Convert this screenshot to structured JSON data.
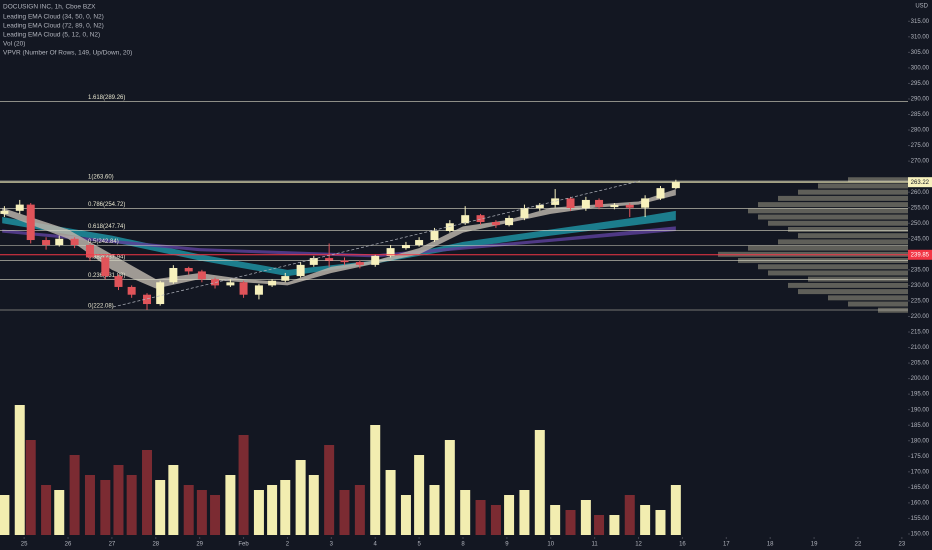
{
  "chart_data": {
    "type": "candlestick",
    "title": "DOCUSIGN INC, 1h, Cboe BZX",
    "indicators": [
      "Leading EMA Cloud (34, 50, 0, N2)",
      "Leading EMA Cloud (72, 89, 0, N2)",
      "Leading EMA Cloud (5, 12, 0, N2)",
      "Vol (20)",
      "VPVR (Number Of Rows, 149, Up/Down, 20)"
    ],
    "currency": "USD",
    "up_color": "#f7f1bd",
    "down_color": "#e0545a",
    "volume_up_color": "#f2edb0",
    "volume_down_color": "#7b2b32",
    "x": [
      -0.45,
      -0.1,
      0.15,
      0.5,
      0.8,
      1.15,
      1.5,
      1.85,
      2.15,
      2.45,
      2.8,
      3.1,
      3.4,
      3.75,
      4.05,
      4.35,
      4.7,
      5.0,
      5.35,
      5.65,
      5.95,
      6.3,
      6.6,
      6.95,
      7.3,
      7.65,
      8.0,
      8.35,
      8.7,
      9.0,
      9.35,
      9.7,
      10.05,
      10.4,
      10.75,
      11.05,
      11.4,
      11.75,
      12.1,
      12.45,
      12.8,
      13.1,
      13.45,
      13.8,
      14.15,
      14.5,
      14.85
    ],
    "open": [
      253,
      254,
      256,
      244.6,
      243,
      245,
      243,
      239,
      233,
      229.5,
      227,
      224,
      231,
      235.6,
      234.5,
      232,
      230,
      231,
      227,
      230,
      231.5,
      233,
      236.6,
      238.8,
      238,
      237.5,
      236.6,
      239.5,
      242,
      243,
      244.6,
      247.5,
      250,
      252.6,
      250.4,
      249.4,
      251.7,
      254.9,
      255.9,
      258,
      254.9,
      257.5,
      255.2,
      255.9,
      255,
      258,
      261.3
    ],
    "high": [
      255.5,
      257.5,
      256.5,
      245.5,
      246,
      245.5,
      243.5,
      239.5,
      233.5,
      230,
      227.5,
      231.5,
      236.5,
      236,
      235,
      232.5,
      232,
      231.5,
      230.5,
      232,
      234,
      237.5,
      239.5,
      243.5,
      239,
      238,
      240,
      243,
      244,
      245.5,
      248.5,
      251,
      255.5,
      253,
      251,
      252.5,
      256,
      256.5,
      261,
      258.5,
      258.5,
      258,
      256.5,
      256.5,
      259,
      262,
      264
    ],
    "low": [
      252,
      253,
      243.5,
      241.5,
      242.5,
      242,
      238,
      232,
      228.5,
      226,
      222.08,
      223.5,
      230.5,
      233.5,
      231,
      229,
      229.5,
      226,
      225.5,
      229.5,
      231,
      232.5,
      236,
      236,
      236.5,
      235.5,
      236,
      239,
      241.5,
      242.5,
      244,
      247,
      249.5,
      249.5,
      248.5,
      249,
      251,
      254,
      255,
      254,
      254,
      254.5,
      254.5,
      252,
      252,
      257.5,
      261
    ],
    "close": [
      254,
      256,
      244.6,
      243,
      245,
      243,
      239,
      233,
      229.5,
      227,
      224,
      231,
      235.6,
      234.5,
      232,
      230,
      231,
      227,
      230,
      231.5,
      233,
      236.6,
      238.8,
      238,
      237.5,
      236.6,
      239.5,
      242,
      243,
      244.6,
      247.5,
      250,
      252.6,
      250.4,
      249.4,
      251.7,
      254.9,
      255.9,
      258,
      254.9,
      257.5,
      255.2,
      255.9,
      255,
      258,
      261.3,
      263.22
    ],
    "volume": [
      40,
      130,
      95,
      50,
      45,
      80,
      60,
      55,
      70,
      60,
      85,
      55,
      70,
      50,
      45,
      40,
      60,
      100,
      45,
      50,
      55,
      75,
      60,
      90,
      45,
      50,
      110,
      65,
      40,
      80,
      50,
      95,
      45,
      35,
      30,
      40,
      45,
      105,
      30,
      25,
      35,
      20,
      20,
      40,
      30,
      25,
      50
    ],
    "volume_lim": [
      0,
      140
    ],
    "ema_clouds": [
      {
        "name": "Leading EMA Cloud (34, 50, 0, N2)",
        "color": "#1f8fa0",
        "x": [
          -0.5,
          2,
          4,
          6,
          8,
          10,
          12,
          14,
          14.85
        ],
        "upper": [
          252,
          246,
          240,
          235,
          238,
          244,
          248,
          252,
          254
        ],
        "lower": [
          250,
          244,
          238,
          233,
          237,
          242,
          246,
          249.5,
          251
        ]
      },
      {
        "name": "Leading EMA Cloud (72, 89, 0, N2)",
        "color": "#5b3f96",
        "x": [
          -0.5,
          4,
          8,
          12,
          14.85
        ],
        "upper": [
          248,
          242,
          240,
          245,
          249
        ],
        "lower": [
          247,
          241,
          239,
          244,
          247.5
        ]
      },
      {
        "name": "Leading EMA Cloud (5, 12, 0, N2)",
        "color": "#b9b1a8",
        "x": [
          -0.5,
          1,
          2,
          3,
          4,
          5,
          6,
          7,
          8,
          9,
          10,
          11,
          12,
          13,
          14,
          14.85
        ],
        "upper": [
          255,
          248,
          240,
          232,
          234,
          232,
          231,
          236,
          238,
          242,
          249,
          251,
          255,
          256,
          257,
          261
        ],
        "lower": [
          253,
          245,
          235,
          229,
          232,
          231,
          230,
          234,
          237,
          240,
          247,
          250,
          253,
          255,
          256,
          259
        ]
      }
    ],
    "vpvr": {
      "color": "#9e9a86",
      "prices": [
        222,
        224,
        226,
        228,
        230,
        232,
        234,
        236,
        238,
        240,
        242,
        244,
        246,
        248,
        250,
        252,
        254,
        256,
        258,
        260,
        262,
        264
      ],
      "values": [
        30,
        60,
        80,
        110,
        120,
        100,
        140,
        150,
        170,
        190,
        160,
        130,
        110,
        120,
        140,
        150,
        160,
        150,
        130,
        110,
        90,
        60
      ],
      "lim": [
        0,
        200
      ]
    },
    "fib_levels": [
      {
        "value": 289.26,
        "label": "1.618(289.26)"
      },
      {
        "value": 263.6,
        "label": "1(263.60)"
      },
      {
        "value": 254.72,
        "label": "0.786(254.72)"
      },
      {
        "value": 247.74,
        "label": "0.618(247.74)"
      },
      {
        "value": 242.84,
        "label": "0.5(242.84)"
      },
      {
        "value": 237.94,
        "label": "0.382(237.94)"
      },
      {
        "value": 231.88,
        "label": "0.236(231.88)"
      },
      {
        "value": 222.08,
        "label": "0(222.08)"
      }
    ],
    "price_lines": [
      {
        "value": 263.22,
        "label": "263.22",
        "color": "#f7f1bd",
        "text_color": "#131722"
      },
      {
        "value": 239.85,
        "label": "239.85",
        "color": "#f23645",
        "text_color": "#ffffff"
      }
    ],
    "xlim": [
      -0.55,
      20.14
    ],
    "ylim": [
      144.84,
      321.85
    ],
    "xticks": [
      {
        "value": 0,
        "label": "25"
      },
      {
        "value": 1,
        "label": "26"
      },
      {
        "value": 2,
        "label": "27"
      },
      {
        "value": 3,
        "label": "28"
      },
      {
        "value": 4,
        "label": "29"
      },
      {
        "value": 5,
        "label": "Feb"
      },
      {
        "value": 6,
        "label": "2"
      },
      {
        "value": 7,
        "label": "3"
      },
      {
        "value": 8,
        "label": "4"
      },
      {
        "value": 9,
        "label": "5"
      },
      {
        "value": 10,
        "label": "8"
      },
      {
        "value": 11,
        "label": "9"
      },
      {
        "value": 12,
        "label": "10"
      },
      {
        "value": 13,
        "label": "11"
      },
      {
        "value": 14,
        "label": "12"
      },
      {
        "value": 15,
        "label": "16"
      },
      {
        "value": 16,
        "label": "17"
      },
      {
        "value": 17,
        "label": "18"
      },
      {
        "value": 18,
        "label": "19"
      },
      {
        "value": 19,
        "label": "22"
      },
      {
        "value": 20,
        "label": "23"
      }
    ],
    "yticks": [
      {
        "value": 150,
        "label": "150.00"
      },
      {
        "value": 155,
        "label": "155.00"
      },
      {
        "value": 160,
        "label": "160.00"
      },
      {
        "value": 165,
        "label": "165.00"
      },
      {
        "value": 170,
        "label": "170.00"
      },
      {
        "value": 175,
        "label": "175.00"
      },
      {
        "value": 180,
        "label": "180.00"
      },
      {
        "value": 185,
        "label": "185.00"
      },
      {
        "value": 190,
        "label": "190.00"
      },
      {
        "value": 195,
        "label": "195.00"
      },
      {
        "value": 200,
        "label": "200.00"
      },
      {
        "value": 205,
        "label": "205.00"
      },
      {
        "value": 210,
        "label": "210.00"
      },
      {
        "value": 215,
        "label": "215.00"
      },
      {
        "value": 220,
        "label": "220.00"
      },
      {
        "value": 225,
        "label": "225.00"
      },
      {
        "value": 230,
        "label": "230.00"
      },
      {
        "value": 235,
        "label": "235.00"
      },
      {
        "value": 245,
        "label": "245.00"
      },
      {
        "value": 250,
        "label": "250.00"
      },
      {
        "value": 255,
        "label": "255.00"
      },
      {
        "value": 260,
        "label": "260.00"
      },
      {
        "value": 270,
        "label": "270.00"
      },
      {
        "value": 275,
        "label": "275.00"
      },
      {
        "value": 280,
        "label": "280.00"
      },
      {
        "value": 285,
        "label": "285.00"
      },
      {
        "value": 290,
        "label": "290.00"
      },
      {
        "value": 295,
        "label": "295.00"
      },
      {
        "value": 300,
        "label": "300.00"
      },
      {
        "value": 305,
        "label": "305.00"
      },
      {
        "value": 310,
        "label": "310.00"
      },
      {
        "value": 315,
        "label": "315.00"
      }
    ],
    "grid": false
  }
}
